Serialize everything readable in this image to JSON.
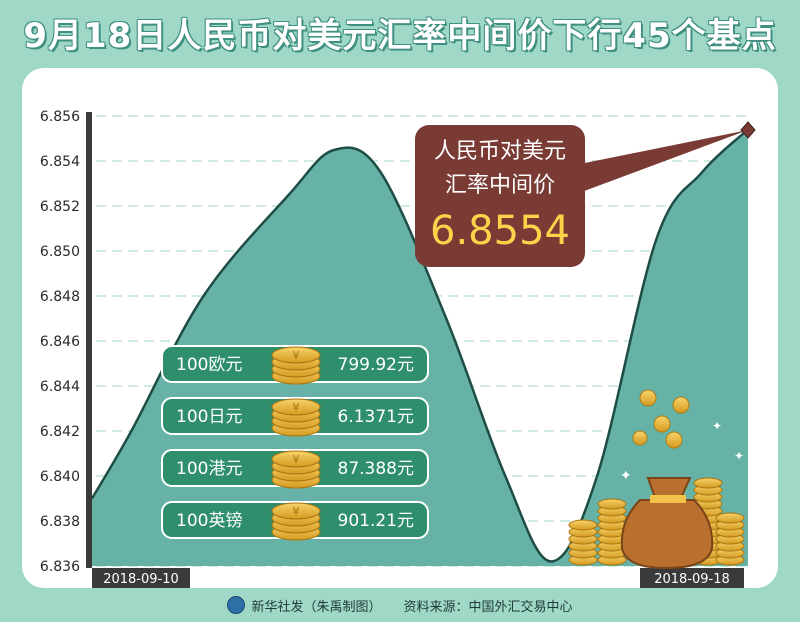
{
  "title": "9月18日人民币对美元汇率中间价下行45个基点",
  "chart_data": {
    "type": "area",
    "yticks": [
      "6.856",
      "6.854",
      "6.852",
      "6.850",
      "6.848",
      "6.846",
      "6.844",
      "6.842",
      "6.840",
      "6.838",
      "6.836"
    ],
    "ylim": [
      6.836,
      6.856
    ],
    "x_start_label": "2018-09-10",
    "x_end_label": "2018-09-18",
    "series": [
      {
        "values": [
          {
            "t": 0.0,
            "y": 6.839
          },
          {
            "t": 0.06,
            "y": 6.842
          },
          {
            "t": 0.17,
            "y": 6.848
          },
          {
            "t": 0.3,
            "y": 6.8525
          },
          {
            "t": 0.37,
            "y": 6.8545
          },
          {
            "t": 0.44,
            "y": 6.8535
          },
          {
            "t": 0.54,
            "y": 6.847
          },
          {
            "t": 0.63,
            "y": 6.84
          },
          {
            "t": 0.7,
            "y": 6.8362
          },
          {
            "t": 0.77,
            "y": 6.84
          },
          {
            "t": 0.86,
            "y": 6.8505
          },
          {
            "t": 0.93,
            "y": 6.8535
          },
          {
            "t": 1.0,
            "y": 6.8554
          }
        ]
      }
    ],
    "callout": {
      "line1": "人民币对美元",
      "line2": "汇率中间价",
      "value": "6.8554"
    },
    "other_rates": [
      {
        "label": "100欧元",
        "value": "799.92元"
      },
      {
        "label": "100日元",
        "value": "6.1371元"
      },
      {
        "label": "100港元",
        "value": "87.388元"
      },
      {
        "label": "100英镑",
        "value": "901.21元"
      }
    ]
  },
  "footer": {
    "credit": "新华社发（朱禹制图）",
    "source": "资料来源：中国外汇交易中心"
  },
  "colors": {
    "background": "#9fd8c6",
    "area": "#67b2a7",
    "area_line": "#1e4d45",
    "callout": "#7a3b35",
    "callout_value": "#ffd24a",
    "rate_box": "#2f8f6d",
    "coin": "#e8b23a"
  }
}
